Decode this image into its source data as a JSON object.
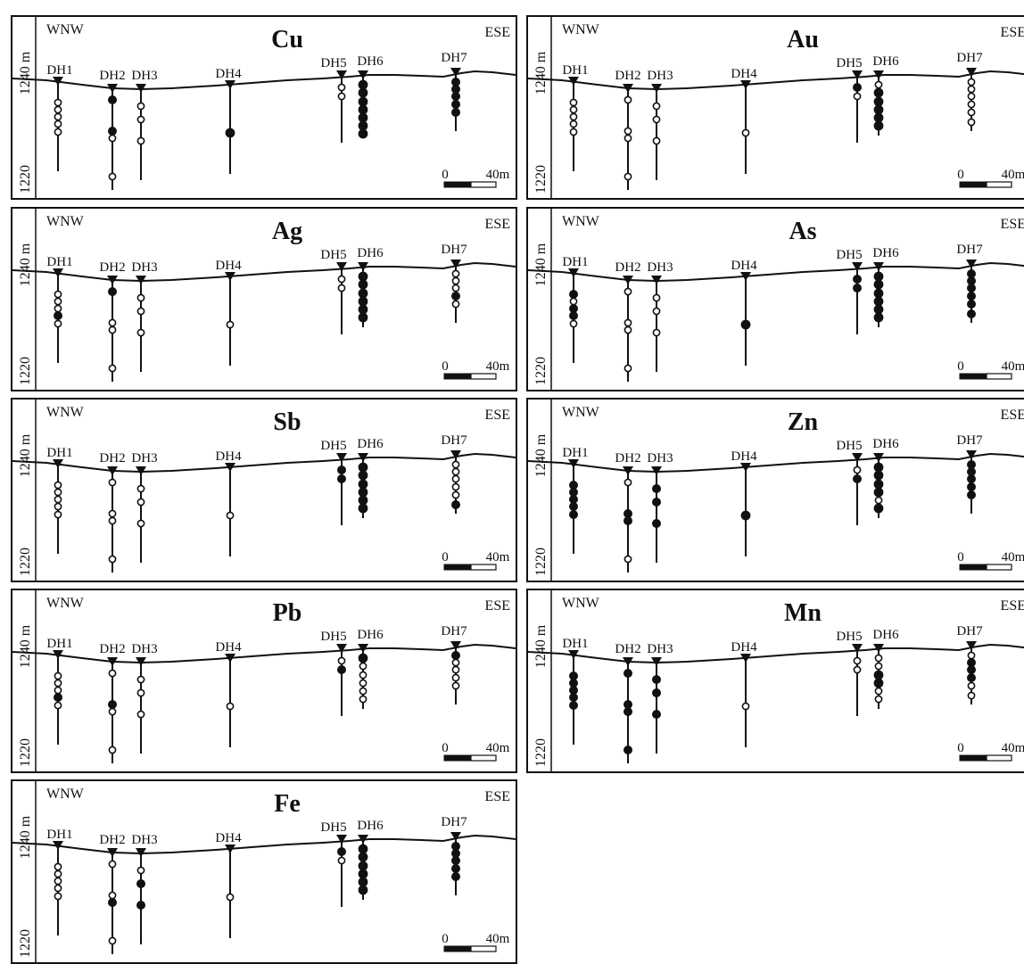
{
  "figure": {
    "direction_left": "WNW",
    "direction_right": "ESE",
    "elevation_upper": "1240 m",
    "elevation_lower": "1220",
    "scale_zero": "0",
    "scale_length": "40m",
    "legend_note": ""
  },
  "drill_holes": [
    {
      "id": "DH1",
      "label": "DH1"
    },
    {
      "id": "DH2",
      "label": "DH2"
    },
    {
      "id": "DH3",
      "label": "DH3"
    },
    {
      "id": "DH4",
      "label": "DH4"
    },
    {
      "id": "DH5",
      "label": "DH5"
    },
    {
      "id": "DH6",
      "label": "DH6"
    },
    {
      "id": "DH7",
      "label": "DH7"
    }
  ],
  "panels": [
    {
      "element": "Cu",
      "samples": {
        "DH1": [
          0,
          0,
          0,
          0,
          0
        ],
        "DH2": [
          1,
          1,
          0,
          0
        ],
        "DH3": [
          0,
          0,
          0
        ],
        "DH4": [
          1
        ],
        "DH5": [
          0,
          0
        ],
        "DH6": [
          1,
          1,
          1,
          1,
          1,
          1,
          1
        ],
        "DH7": [
          1,
          1,
          1,
          1,
          1
        ]
      }
    },
    {
      "element": "Au",
      "samples": {
        "DH1": [
          0,
          0,
          0,
          0,
          0
        ],
        "DH2": [
          0,
          0,
          0,
          0
        ],
        "DH3": [
          0,
          0,
          0
        ],
        "DH4": [
          0
        ],
        "DH5": [
          1,
          0
        ],
        "DH6": [
          0,
          1,
          1,
          1,
          1,
          1
        ],
        "DH7": [
          0,
          0,
          0,
          0,
          0,
          0
        ]
      }
    },
    {
      "element": "Ag",
      "samples": {
        "DH1": [
          0,
          0,
          0,
          1,
          0
        ],
        "DH2": [
          1,
          0,
          0,
          0
        ],
        "DH3": [
          0,
          0,
          0
        ],
        "DH4": [
          0
        ],
        "DH5": [
          0,
          0
        ],
        "DH6": [
          1,
          1,
          1,
          1,
          1,
          1
        ],
        "DH7": [
          0,
          0,
          0,
          1,
          0
        ]
      }
    },
    {
      "element": "As",
      "samples": {
        "DH1": [
          1,
          0,
          1,
          1,
          0
        ],
        "DH2": [
          0,
          0,
          0,
          0
        ],
        "DH3": [
          0,
          0,
          0
        ],
        "DH4": [
          1
        ],
        "DH5": [
          1,
          1
        ],
        "DH6": [
          1,
          1,
          1,
          1,
          1,
          1
        ],
        "DH7": [
          1,
          1,
          1,
          1,
          1,
          1
        ]
      }
    },
    {
      "element": "Sb",
      "samples": {
        "DH1": [
          0,
          0,
          0,
          0,
          0
        ],
        "DH2": [
          0,
          0,
          0,
          0
        ],
        "DH3": [
          0,
          0,
          0
        ],
        "DH4": [
          0
        ],
        "DH5": [
          1,
          1
        ],
        "DH6": [
          1,
          1,
          1,
          1,
          1,
          1
        ],
        "DH7": [
          0,
          0,
          0,
          0,
          0,
          1
        ]
      }
    },
    {
      "element": "Zn",
      "samples": {
        "DH1": [
          1,
          1,
          1,
          1,
          1
        ],
        "DH2": [
          0,
          1,
          1,
          0
        ],
        "DH3": [
          1,
          1,
          1
        ],
        "DH4": [
          1
        ],
        "DH5": [
          0,
          1
        ],
        "DH6": [
          1,
          1,
          1,
          1,
          0,
          1
        ],
        "DH7": [
          1,
          1,
          1,
          1,
          1
        ]
      }
    },
    {
      "element": "Pb",
      "samples": {
        "DH1": [
          0,
          0,
          0,
          1,
          0
        ],
        "DH2": [
          0,
          1,
          0,
          0
        ],
        "DH3": [
          0,
          0,
          0
        ],
        "DH4": [
          0
        ],
        "DH5": [
          0,
          1
        ],
        "DH6": [
          1,
          0,
          0,
          0,
          0,
          0
        ],
        "DH7": [
          1,
          0,
          0,
          0,
          0
        ]
      }
    },
    {
      "element": "Mn",
      "samples": {
        "DH1": [
          1,
          1,
          1,
          1,
          1
        ],
        "DH2": [
          1,
          1,
          1,
          1
        ],
        "DH3": [
          1,
          1,
          1
        ],
        "DH4": [
          0
        ],
        "DH5": [
          0,
          0
        ],
        "DH6": [
          0,
          0,
          1,
          1,
          0,
          0
        ],
        "DH7": [
          0,
          1,
          1,
          1,
          0,
          0
        ]
      }
    },
    {
      "element": "Fe",
      "samples": {
        "DH1": [
          0,
          0,
          0,
          0,
          0
        ],
        "DH2": [
          0,
          0,
          1,
          0
        ],
        "DH3": [
          0,
          1,
          1
        ],
        "DH4": [
          0
        ],
        "DH5": [
          1,
          0
        ],
        "DH6": [
          1,
          1,
          1,
          1,
          1,
          1
        ],
        "DH7": [
          1,
          1,
          1,
          1,
          1
        ]
      }
    }
  ]
}
